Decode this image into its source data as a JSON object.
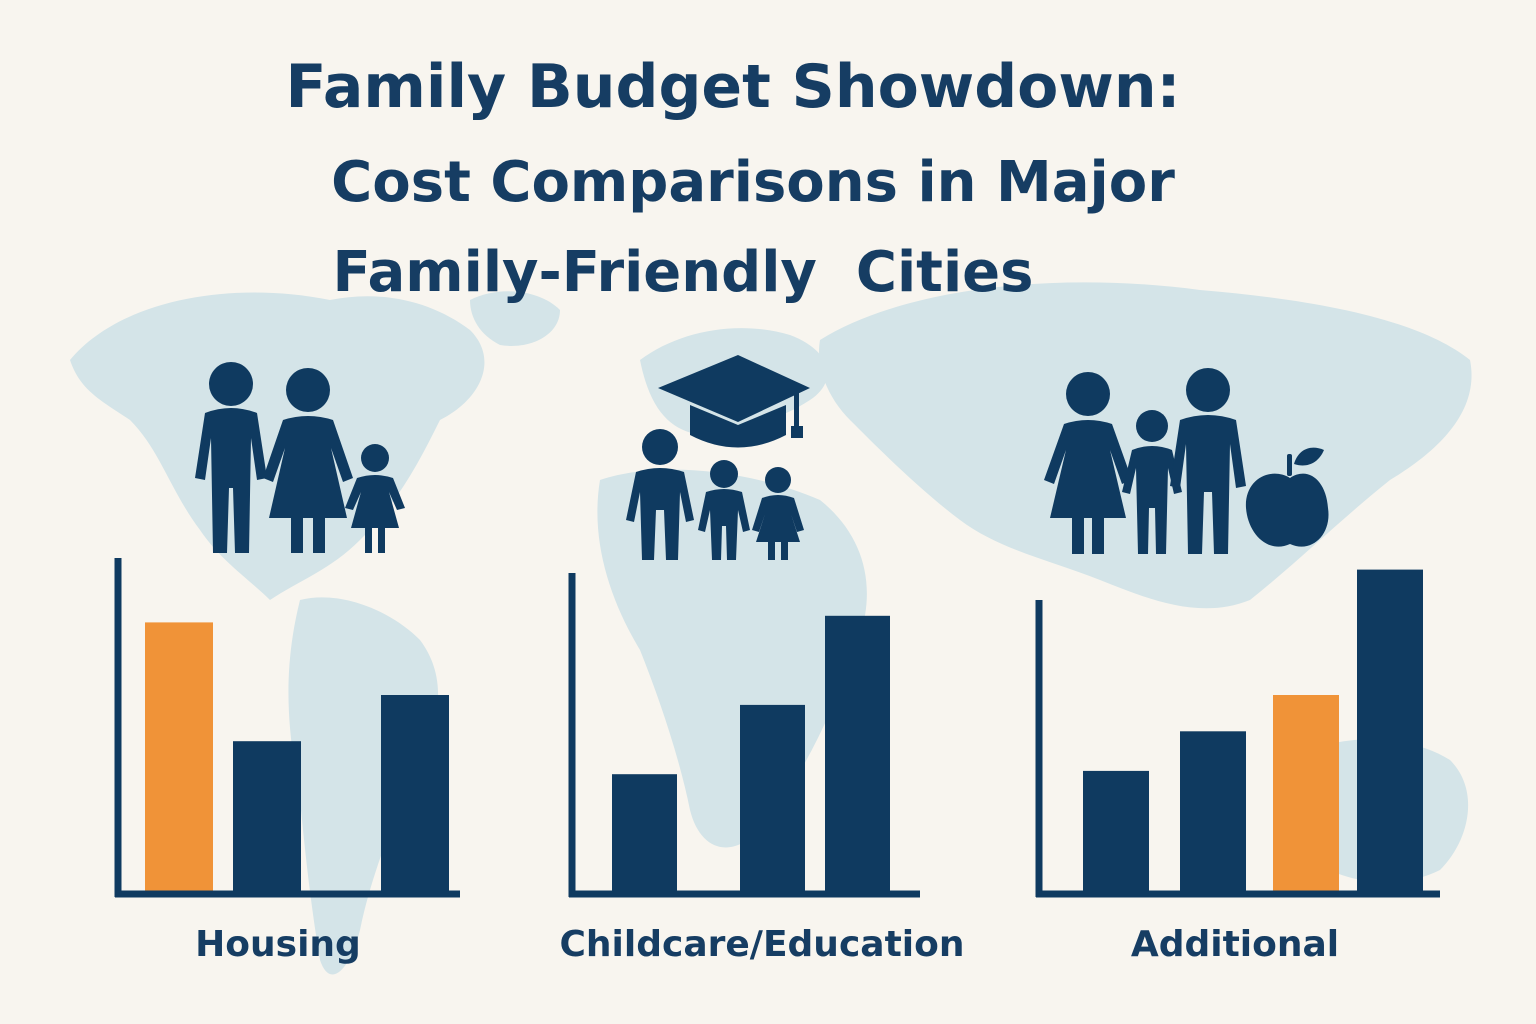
{
  "title": {
    "line1": "Family Budget Showdown:",
    "line2": "Cost Comparisons in Major",
    "line3": "Family-Friendly  Cities"
  },
  "colors": {
    "primary": "#0f3a60",
    "highlight": "#f09338",
    "map": "#d4e4e8",
    "background": "#f8f5ef",
    "text": "#163d63"
  },
  "icons": {
    "housing": "family-icon",
    "childcare": "graduation-cap-children-icon",
    "additional": "family-apple-icon"
  },
  "chart_data": [
    {
      "type": "bar",
      "title": "Housing",
      "categories": [
        "",
        "",
        ""
      ],
      "values": [
        82,
        46,
        60
      ],
      "highlight_index": 0,
      "ylim": [
        0,
        100
      ]
    },
    {
      "type": "bar",
      "title": "Childcare/Education",
      "categories": [
        "",
        "",
        ""
      ],
      "values": [
        36,
        57,
        84
      ],
      "highlight_index": -1,
      "ylim": [
        0,
        100
      ]
    },
    {
      "type": "bar",
      "title": "Additional",
      "categories": [
        "",
        "",
        "",
        ""
      ],
      "values": [
        37,
        49,
        60,
        98
      ],
      "highlight_index": 2,
      "ylim": [
        0,
        100
      ]
    }
  ]
}
